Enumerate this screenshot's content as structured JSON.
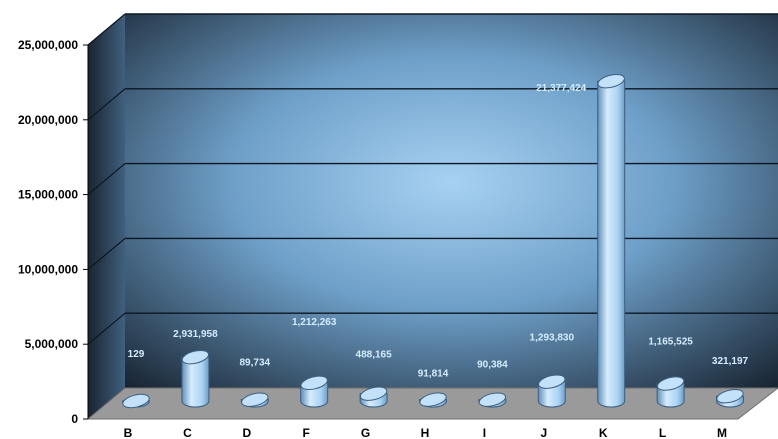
{
  "chart_data": {
    "type": "bar",
    "title": "",
    "xlabel": "",
    "ylabel": "",
    "categories": [
      "B",
      "C",
      "D",
      "F",
      "G",
      "H",
      "I",
      "J",
      "K",
      "L",
      "M"
    ],
    "values": [
      129,
      2931958,
      89734,
      1212263,
      488165,
      91814,
      90384,
      1293830,
      21377424,
      1165525,
      321197
    ],
    "data_labels": [
      "129",
      "2,931,958",
      "89,734",
      "1,212,263",
      "488,165",
      "91,814",
      "90,384",
      "1,293,830",
      "21,377,424",
      "1,165,525",
      "321,197"
    ],
    "ylim": [
      0,
      25000000
    ],
    "yticks": [
      0,
      5000000,
      10000000,
      15000000,
      20000000,
      25000000
    ],
    "ytick_labels": [
      "0",
      "5,000,000",
      "10,000,000",
      "15,000,000",
      "20,000,000",
      "25,000,000"
    ],
    "grid": true,
    "legend": "none",
    "colors": {
      "bar": "#a9d3f3",
      "bar_edge": "#3c5e80",
      "wall_center": "#a7d1f2",
      "wall_edge": "#16212e",
      "floor": "#9a9a9a",
      "data_label": "#d4ecff"
    }
  }
}
